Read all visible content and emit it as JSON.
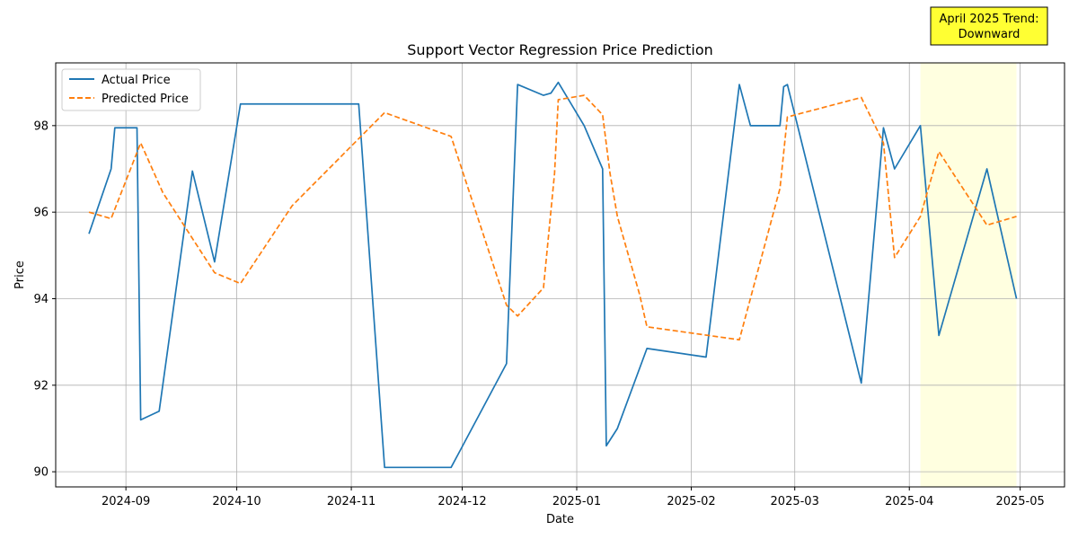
{
  "chart_data": {
    "type": "line",
    "title": "Support Vector Regression Price Prediction",
    "xlabel": "Date",
    "ylabel": "Price",
    "x_axis": "date",
    "xlim": [
      "2024-08-13",
      "2025-05-13"
    ],
    "ylim": [
      89.65,
      99.45
    ],
    "x_ticks": [
      "2024-09-01",
      "2024-10-01",
      "2024-11-01",
      "2024-12-01",
      "2025-01-01",
      "2025-02-01",
      "2025-03-01",
      "2025-04-01",
      "2025-05-01"
    ],
    "x_tick_labels": [
      "2024-09",
      "2024-10",
      "2024-11",
      "2024-12",
      "2025-01",
      "2025-02",
      "2025-03",
      "2025-04",
      "2025-05"
    ],
    "y_ticks": [
      90,
      92,
      94,
      96,
      98
    ],
    "y_tick_labels": [
      "90",
      "92",
      "94",
      "96",
      "98"
    ],
    "grid": true,
    "legend": "upper-left",
    "series": [
      {
        "name": "Actual Price",
        "color": "#1f77b4",
        "style": "solid",
        "points": [
          [
            "2024-08-22",
            95.5
          ],
          [
            "2024-08-28",
            97.0
          ],
          [
            "2024-08-29",
            97.95
          ],
          [
            "2024-09-04",
            97.95
          ],
          [
            "2024-09-05",
            91.2
          ],
          [
            "2024-09-10",
            91.4
          ],
          [
            "2024-09-19",
            96.95
          ],
          [
            "2024-09-25",
            94.85
          ],
          [
            "2024-10-02",
            98.5
          ],
          [
            "2024-11-03",
            98.5
          ],
          [
            "2024-11-10",
            90.1
          ],
          [
            "2024-11-28",
            90.1
          ],
          [
            "2024-12-13",
            92.5
          ],
          [
            "2024-12-16",
            98.95
          ],
          [
            "2024-12-23",
            98.7
          ],
          [
            "2024-12-25",
            98.75
          ],
          [
            "2024-12-27",
            99.0
          ],
          [
            "2025-01-03",
            98.0
          ],
          [
            "2025-01-08",
            97.0
          ],
          [
            "2025-01-09",
            90.6
          ],
          [
            "2025-01-12",
            91.0
          ],
          [
            "2025-01-20",
            92.85
          ],
          [
            "2025-02-05",
            92.65
          ],
          [
            "2025-02-14",
            98.95
          ],
          [
            "2025-02-17",
            98.0
          ],
          [
            "2025-02-25",
            98.0
          ],
          [
            "2025-02-26",
            98.9
          ],
          [
            "2025-02-27",
            98.95
          ],
          [
            "2025-03-19",
            92.05
          ],
          [
            "2025-03-25",
            97.95
          ],
          [
            "2025-03-28",
            97.0
          ],
          [
            "2025-04-04",
            98.0
          ],
          [
            "2025-04-09",
            93.15
          ],
          [
            "2025-04-22",
            97.0
          ],
          [
            "2025-04-30",
            94.0
          ]
        ]
      },
      {
        "name": "Predicted Price",
        "color": "#ff7f0e",
        "style": "dashed",
        "points": [
          [
            "2024-08-22",
            96.0
          ],
          [
            "2024-08-28",
            95.85
          ],
          [
            "2024-09-05",
            97.6
          ],
          [
            "2024-09-11",
            96.45
          ],
          [
            "2024-09-25",
            94.6
          ],
          [
            "2024-10-02",
            94.35
          ],
          [
            "2024-10-16",
            96.15
          ],
          [
            "2024-11-10",
            98.3
          ],
          [
            "2024-11-28",
            97.75
          ],
          [
            "2024-12-13",
            93.85
          ],
          [
            "2024-12-16",
            93.6
          ],
          [
            "2024-12-23",
            94.25
          ],
          [
            "2024-12-26",
            96.9
          ],
          [
            "2024-12-27",
            98.6
          ],
          [
            "2025-01-03",
            98.7
          ],
          [
            "2025-01-08",
            98.25
          ],
          [
            "2025-01-10",
            96.9
          ],
          [
            "2025-01-12",
            95.9
          ],
          [
            "2025-01-18",
            94.1
          ],
          [
            "2025-01-20",
            93.35
          ],
          [
            "2025-02-14",
            93.05
          ],
          [
            "2025-02-25",
            96.55
          ],
          [
            "2025-02-27",
            98.2
          ],
          [
            "2025-03-19",
            98.65
          ],
          [
            "2025-03-25",
            97.6
          ],
          [
            "2025-03-28",
            94.95
          ],
          [
            "2025-04-04",
            95.9
          ],
          [
            "2025-04-09",
            97.4
          ],
          [
            "2025-04-22",
            95.7
          ],
          [
            "2025-04-30",
            95.9
          ]
        ]
      }
    ],
    "highlight_region": {
      "x0": "2025-04-04",
      "x1": "2025-04-30",
      "color": "#ffffe0"
    },
    "annotation": {
      "lines": [
        "April 2025 Trend:",
        "Downward"
      ],
      "background": "#ffff33",
      "placement": "top-right"
    }
  }
}
